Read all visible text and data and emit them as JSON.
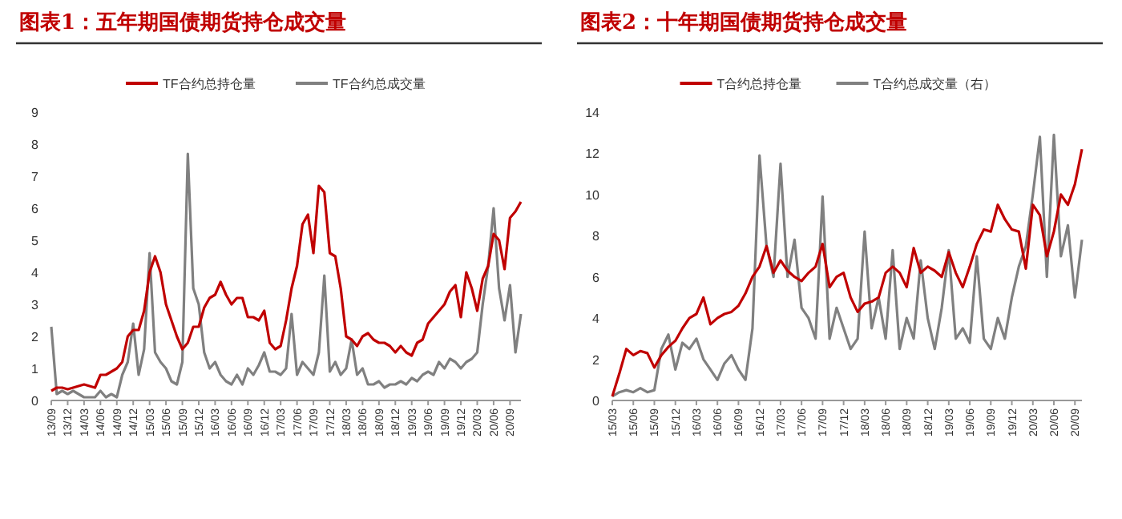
{
  "chart_data": [
    {
      "type": "line",
      "title": "图表1：五年期国债期货持仓成交量",
      "legend": "top",
      "ylim": [
        0,
        9
      ],
      "yticks": [
        0,
        1,
        2,
        3,
        4,
        5,
        6,
        7,
        8,
        9
      ],
      "categories": [
        "13/09",
        null,
        null,
        "13/12",
        null,
        null,
        "14/03",
        null,
        null,
        "14/06",
        null,
        null,
        "14/09",
        null,
        null,
        "14/12",
        null,
        null,
        "15/03",
        null,
        null,
        "15/06",
        null,
        null,
        "15/09",
        null,
        null,
        "15/12",
        null,
        null,
        "16/03",
        null,
        null,
        "16/06",
        null,
        null,
        "16/09",
        null,
        null,
        "16/12",
        null,
        null,
        "17/03",
        null,
        null,
        "17/06",
        null,
        null,
        "17/09",
        null,
        null,
        "17/12",
        null,
        null,
        "18/03",
        null,
        null,
        "18/06",
        null,
        null,
        "18/09",
        null,
        null,
        "18/12",
        null,
        null,
        "19/03",
        null,
        null,
        "19/06",
        null,
        null,
        "19/09",
        null,
        null,
        "19/12",
        null,
        null,
        "20/03",
        null,
        null,
        "20/06",
        null,
        null,
        "20/09",
        null,
        null
      ],
      "series": [
        {
          "name": "TF合约总持仓量",
          "color": "#c00000",
          "values": [
            0.3,
            0.4,
            0.4,
            0.35,
            0.4,
            0.45,
            0.5,
            0.45,
            0.4,
            0.8,
            0.8,
            0.9,
            1.0,
            1.2,
            2.0,
            2.2,
            2.2,
            2.8,
            4.0,
            4.5,
            4.0,
            3.0,
            2.5,
            2.0,
            1.6,
            1.8,
            2.3,
            2.3,
            2.9,
            3.2,
            3.3,
            3.7,
            3.3,
            3.0,
            3.2,
            3.2,
            2.6,
            2.6,
            2.5,
            2.8,
            1.8,
            1.6,
            1.7,
            2.5,
            3.5,
            4.2,
            5.5,
            5.8,
            4.6,
            6.7,
            6.5,
            4.6,
            4.5,
            3.5,
            2.0,
            1.9,
            1.7,
            2.0,
            2.1,
            1.9,
            1.8,
            1.8,
            1.7,
            1.5,
            1.7,
            1.5,
            1.4,
            1.8,
            1.9,
            2.4,
            2.6,
            2.8,
            3.0,
            3.4,
            3.6,
            2.6,
            4.0,
            3.5,
            2.8,
            3.8,
            4.2,
            5.2,
            5.0,
            4.1,
            5.7,
            5.9,
            6.2
          ]
        },
        {
          "name": "TF合约总成交量",
          "color": "#808080",
          "values": [
            2.3,
            0.2,
            0.3,
            0.2,
            0.3,
            0.2,
            0.1,
            0.1,
            0.1,
            0.3,
            0.1,
            0.2,
            0.1,
            0.8,
            1.2,
            2.4,
            0.8,
            1.6,
            4.6,
            1.5,
            1.2,
            1.0,
            0.6,
            0.5,
            1.2,
            7.7,
            3.5,
            3.0,
            1.5,
            1.0,
            1.2,
            0.8,
            0.6,
            0.5,
            0.8,
            0.5,
            1.0,
            0.8,
            1.1,
            1.5,
            0.9,
            0.9,
            0.8,
            1.0,
            2.7,
            0.8,
            1.2,
            1.0,
            0.8,
            1.5,
            3.9,
            0.9,
            1.2,
            0.8,
            1.0,
            1.9,
            0.8,
            1.0,
            0.5,
            0.5,
            0.6,
            0.4,
            0.5,
            0.5,
            0.6,
            0.5,
            0.7,
            0.6,
            0.8,
            0.9,
            0.8,
            1.2,
            1.0,
            1.3,
            1.2,
            1.0,
            1.2,
            1.3,
            1.5,
            3.0,
            4.2,
            6.0,
            3.5,
            2.5,
            3.6,
            1.5,
            2.7
          ]
        }
      ]
    },
    {
      "type": "line",
      "title": "图表2：十年期国债期货持仓成交量",
      "legend": "top",
      "ylim": [
        0,
        14
      ],
      "yticks": [
        0,
        2,
        4,
        6,
        8,
        10,
        12,
        14
      ],
      "categories": [
        "15/03",
        null,
        null,
        "15/06",
        null,
        null,
        "15/09",
        null,
        null,
        "15/12",
        null,
        null,
        "16/03",
        null,
        null,
        "16/06",
        null,
        null,
        "16/09",
        null,
        null,
        "16/12",
        null,
        null,
        "17/03",
        null,
        null,
        "17/06",
        null,
        null,
        "17/09",
        null,
        null,
        "17/12",
        null,
        null,
        "18/03",
        null,
        null,
        "18/06",
        null,
        null,
        "18/09",
        null,
        null,
        "18/12",
        null,
        null,
        "19/03",
        null,
        null,
        "19/06",
        null,
        null,
        "19/09",
        null,
        null,
        "19/12",
        null,
        null,
        "20/03",
        null,
        null,
        "20/06",
        null,
        null,
        "20/09",
        null
      ],
      "series": [
        {
          "name": "T合约总持仓量",
          "color": "#c00000",
          "values": [
            0.2,
            1.3,
            2.5,
            2.2,
            2.4,
            2.3,
            1.6,
            2.2,
            2.6,
            2.9,
            3.5,
            4.0,
            4.2,
            5.0,
            3.7,
            4.0,
            4.2,
            4.3,
            4.6,
            5.2,
            6.0,
            6.5,
            7.5,
            6.2,
            6.8,
            6.3,
            6.0,
            5.8,
            6.2,
            6.5,
            7.6,
            5.5,
            6.0,
            6.2,
            5.0,
            4.3,
            4.7,
            4.8,
            5.0,
            6.2,
            6.5,
            6.2,
            5.5,
            7.4,
            6.2,
            6.5,
            6.3,
            6.0,
            7.2,
            6.2,
            5.5,
            6.5,
            7.6,
            8.3,
            8.2,
            9.5,
            8.8,
            8.3,
            8.2,
            6.4,
            9.5,
            9.0,
            7.0,
            8.2,
            10.0,
            9.5,
            10.5,
            12.2
          ]
        },
        {
          "name": "T合约总成交量（右）",
          "color": "#808080",
          "values": [
            0.2,
            0.4,
            0.5,
            0.4,
            0.6,
            0.4,
            0.5,
            2.5,
            3.2,
            1.5,
            2.8,
            2.5,
            3.0,
            2.0,
            1.5,
            1.0,
            1.8,
            2.2,
            1.5,
            1.0,
            3.5,
            11.9,
            7.5,
            6.0,
            11.5,
            6.0,
            7.8,
            4.5,
            4.0,
            3.0,
            9.9,
            3.0,
            4.5,
            3.5,
            2.5,
            3.0,
            8.2,
            3.5,
            5.0,
            3.0,
            7.3,
            2.5,
            4.0,
            3.0,
            6.8,
            4.0,
            2.5,
            4.5,
            7.3,
            3.0,
            3.5,
            2.8,
            7.0,
            3.0,
            2.5,
            4.0,
            3.0,
            5.0,
            6.5,
            7.5,
            10.0,
            12.8,
            6.0,
            12.9,
            7.0,
            8.5,
            5.0,
            7.8
          ]
        }
      ]
    }
  ]
}
